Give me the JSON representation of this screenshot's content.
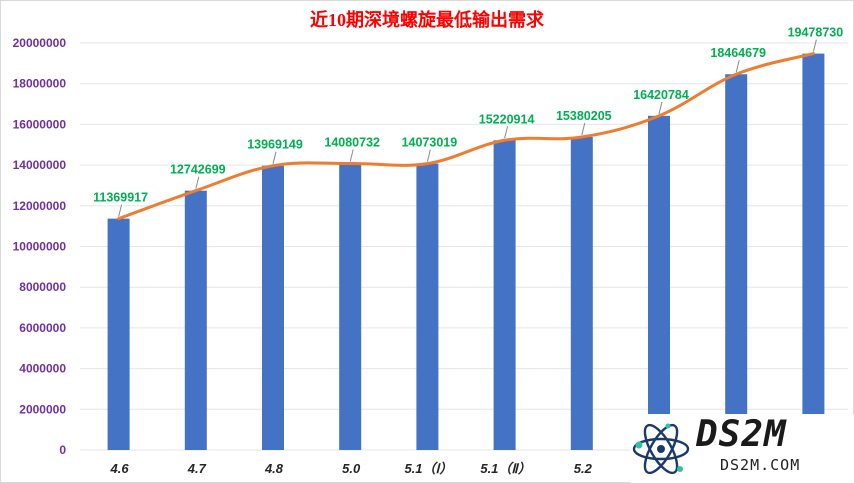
{
  "chart_data": {
    "type": "bar",
    "title": "近10期深境螺旋最低输出需求",
    "categories": [
      "4.6",
      "4.7",
      "4.8",
      "5.0",
      "5.1（Ⅰ）",
      "5.1（Ⅱ）",
      "5.2",
      "",
      "",
      ""
    ],
    "values": [
      11369917,
      12742699,
      13969149,
      14080732,
      14073019,
      15220914,
      15380205,
      16420784,
      18464679,
      19478730
    ],
    "value_labels": [
      "11369917",
      "12742699",
      "13969149",
      "14080732",
      "14073019",
      "15220914",
      "15380205",
      "16420784",
      "18464679",
      "19478730"
    ],
    "overlay_line": true,
    "ylim": [
      0,
      20000000
    ],
    "yticks": [
      "0",
      "2000000",
      "4000000",
      "6000000",
      "8000000",
      "10000000",
      "12000000",
      "14000000",
      "16000000",
      "18000000",
      "20000000"
    ],
    "grid": true,
    "legend": "none"
  },
  "colors": {
    "bar": "#4472c4",
    "line": "#ed7d31",
    "title": "#ff0000",
    "value_label": "#00b050",
    "y_tick": "#7030a0",
    "x_tick": "#262626",
    "grid": "#e6e6e6"
  },
  "watermark": {
    "brand": "DS2M",
    "url": "DS2M.COM",
    "logo_icon": "atom-logo-icon"
  }
}
